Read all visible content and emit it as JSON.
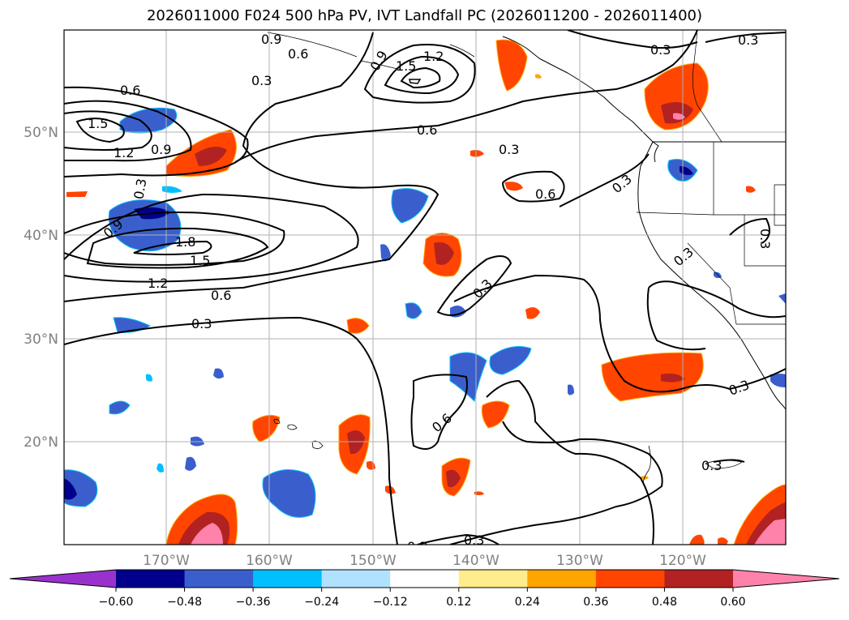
{
  "title": "2026011000 F024 500 hPa PV, IVT Landfall PC (2026011200 - 2026011400)",
  "map": {
    "lat_labels": [
      "50°N",
      "40°N",
      "30°N",
      "20°N"
    ],
    "lon_labels": [
      "170°W",
      "160°W",
      "150°W",
      "140°W",
      "130°W",
      "120°W"
    ],
    "contour_labels": [
      "0.3",
      "0.6",
      "0.9",
      "1.2",
      "1.5",
      "1.8"
    ],
    "colors": {
      "contour": "#000000",
      "grid": "#b0b0b0"
    }
  },
  "colorbar": {
    "ticks": [
      "−0.60",
      "−0.48",
      "−0.36",
      "−0.24",
      "−0.12",
      "0.12",
      "0.24",
      "0.36",
      "0.48",
      "0.60"
    ],
    "colors": [
      "#9932cc",
      "#00008b",
      "#3a5fcd",
      "#00bfff",
      "#b0e2ff",
      "#ffffff",
      "#ffec8b",
      "#ffa500",
      "#ff4500",
      "#b22222",
      "#ff82ab"
    ]
  }
}
